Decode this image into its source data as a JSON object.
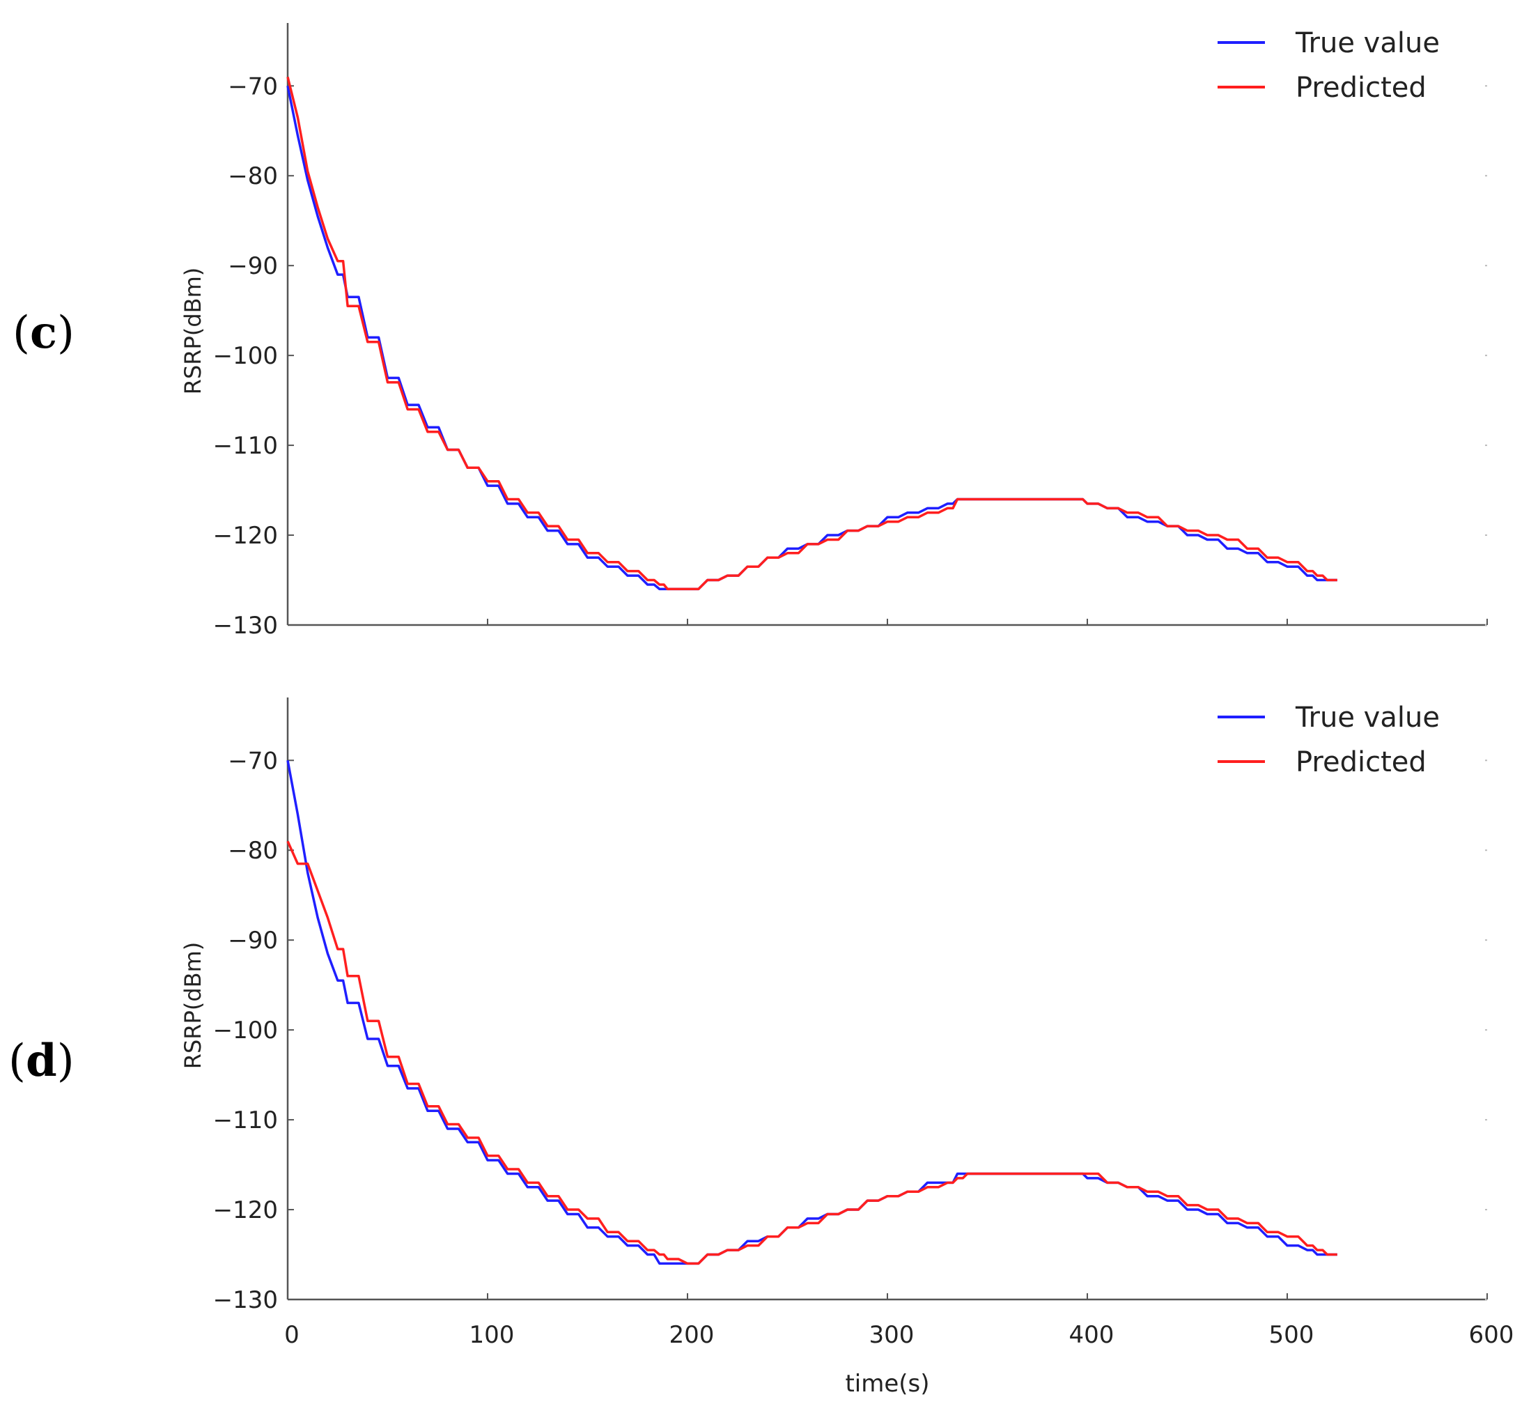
{
  "figure": {
    "panels": [
      {
        "label_open": "(",
        "label_letter": "c",
        "label_close": ")"
      },
      {
        "label_open": "(",
        "label_letter": "d",
        "label_close": ")"
      }
    ]
  },
  "chart_data": [
    {
      "type": "line",
      "panel": "c",
      "title": "",
      "xlabel": "",
      "ylabel": "RSRP(dBm)",
      "xlim": [
        0,
        600
      ],
      "ylim": [
        -130,
        -63
      ],
      "yticks": [
        -70,
        -80,
        -90,
        -100,
        -110,
        -120,
        -130
      ],
      "ytick_labels": [
        "−70",
        "−80",
        "−90",
        "−100",
        "−110",
        "−120",
        "−130"
      ],
      "xticks": [
        0,
        100,
        200,
        300,
        400,
        500,
        600
      ],
      "xtick_labels": [],
      "legend_position": "top-right",
      "series": [
        {
          "name": "True value",
          "color": "#1f1fff",
          "x": [
            0,
            5,
            10,
            15,
            20,
            25,
            30,
            40,
            50,
            60,
            70,
            80,
            90,
            100,
            110,
            120,
            130,
            140,
            150,
            160,
            170,
            180,
            186,
            190,
            200,
            210,
            220,
            230,
            240,
            250,
            260,
            270,
            280,
            290,
            300,
            310,
            320,
            330,
            335,
            340,
            350,
            360,
            370,
            380,
            390,
            395,
            400,
            410,
            420,
            430,
            440,
            450,
            460,
            470,
            480,
            490,
            500,
            510,
            515,
            520,
            525
          ],
          "y": [
            -70,
            -75.5,
            -80.5,
            -84.5,
            -88,
            -91,
            -93.5,
            -98,
            -102.5,
            -105.5,
            -108,
            -110.5,
            -112.5,
            -114.5,
            -116.5,
            -118,
            -119.5,
            -121,
            -122.5,
            -123.5,
            -124.5,
            -125.5,
            -126,
            -126,
            -126,
            -125,
            -124.5,
            -123.5,
            -122.5,
            -121.5,
            -121,
            -120,
            -119.5,
            -119,
            -118,
            -117.5,
            -117,
            -116.5,
            -116,
            -116,
            -116,
            -116,
            -116,
            -116,
            -116,
            -116,
            -116.5,
            -117,
            -118,
            -118.5,
            -119,
            -120,
            -120.5,
            -121.5,
            -122,
            -123,
            -123.5,
            -124.5,
            -125,
            -125,
            -125
          ]
        },
        {
          "name": "Predicted",
          "color": "#ff1f1f",
          "x": [
            0,
            5,
            10,
            15,
            20,
            25,
            30,
            40,
            50,
            60,
            70,
            80,
            90,
            100,
            110,
            120,
            130,
            140,
            150,
            160,
            170,
            180,
            186,
            190,
            200,
            210,
            220,
            230,
            240,
            250,
            260,
            270,
            280,
            290,
            300,
            310,
            320,
            330,
            335,
            340,
            350,
            360,
            370,
            380,
            390,
            395,
            400,
            410,
            420,
            430,
            440,
            450,
            460,
            470,
            480,
            490,
            500,
            510,
            515,
            520,
            525
          ],
          "y": [
            -69,
            -73.5,
            -79.5,
            -83.5,
            -87,
            -89.5,
            -94.5,
            -98.5,
            -103,
            -106,
            -108.5,
            -110.5,
            -112.5,
            -114,
            -116,
            -117.5,
            -119,
            -120.5,
            -122,
            -123,
            -124,
            -125,
            -125.5,
            -126,
            -126,
            -125,
            -124.5,
            -123.5,
            -122.5,
            -122,
            -121,
            -120.5,
            -119.5,
            -119,
            -118.5,
            -118,
            -117.5,
            -117,
            -116,
            -116,
            -116,
            -116,
            -116,
            -116,
            -116,
            -116,
            -116.5,
            -117,
            -117.5,
            -118,
            -119,
            -119.5,
            -120,
            -120.5,
            -121.5,
            -122.5,
            -123,
            -124,
            -124.5,
            -125,
            -125
          ]
        }
      ]
    },
    {
      "type": "line",
      "panel": "d",
      "title": "",
      "xlabel": "time(s)",
      "ylabel": "RSRP(dBm)",
      "xlim": [
        0,
        600
      ],
      "ylim": [
        -130,
        -63
      ],
      "yticks": [
        -70,
        -80,
        -90,
        -100,
        -110,
        -120,
        -130
      ],
      "ytick_labels": [
        "−70",
        "−80",
        "−90",
        "−100",
        "−110",
        "−120",
        "−130"
      ],
      "xticks": [
        0,
        100,
        200,
        300,
        400,
        500,
        600
      ],
      "xtick_labels": [
        "0",
        "100",
        "200",
        "300",
        "400",
        "500",
        "600"
      ],
      "legend_position": "top-right",
      "series": [
        {
          "name": "True value",
          "color": "#1f1fff",
          "x": [
            0,
            5,
            10,
            15,
            20,
            25,
            30,
            40,
            50,
            60,
            70,
            80,
            90,
            100,
            110,
            120,
            130,
            140,
            150,
            160,
            170,
            180,
            186,
            190,
            200,
            210,
            220,
            230,
            240,
            250,
            260,
            270,
            280,
            290,
            300,
            310,
            320,
            330,
            335,
            340,
            350,
            360,
            370,
            380,
            390,
            395,
            400,
            410,
            420,
            430,
            440,
            450,
            460,
            470,
            480,
            490,
            500,
            510,
            515,
            520,
            525
          ],
          "y": [
            -70,
            -76,
            -82.5,
            -87.5,
            -91.5,
            -94.5,
            -97,
            -101,
            -104,
            -106.5,
            -109,
            -111,
            -112.5,
            -114.5,
            -116,
            -117.5,
            -119,
            -120.5,
            -122,
            -123,
            -124,
            -125,
            -126,
            -126,
            -126,
            -125,
            -124.5,
            -123.5,
            -123,
            -122,
            -121,
            -120.5,
            -120,
            -119,
            -118.5,
            -118,
            -117,
            -117,
            -116,
            -116,
            -116,
            -116,
            -116,
            -116,
            -116,
            -116,
            -116.5,
            -117,
            -117.5,
            -118.5,
            -119,
            -120,
            -120.5,
            -121.5,
            -122,
            -123,
            -124,
            -124.5,
            -125,
            -125,
            -125
          ]
        },
        {
          "name": "Predicted",
          "color": "#ff1f1f",
          "x": [
            0,
            5,
            10,
            15,
            20,
            25,
            30,
            40,
            50,
            60,
            70,
            80,
            90,
            100,
            110,
            120,
            130,
            140,
            150,
            160,
            170,
            180,
            186,
            190,
            200,
            210,
            220,
            230,
            240,
            250,
            260,
            270,
            280,
            290,
            300,
            310,
            320,
            330,
            335,
            340,
            350,
            360,
            370,
            380,
            390,
            395,
            400,
            410,
            420,
            430,
            440,
            450,
            460,
            470,
            480,
            490,
            500,
            510,
            515,
            520,
            525
          ],
          "y": [
            -79,
            -81.5,
            -81.5,
            -84.5,
            -87.5,
            -91,
            -94,
            -99,
            -103,
            -106,
            -108.5,
            -110.5,
            -112,
            -114,
            -115.5,
            -117,
            -118.5,
            -120,
            -121,
            -122.5,
            -123.5,
            -124.5,
            -125,
            -125.5,
            -126,
            -125,
            -124.5,
            -124,
            -123,
            -122,
            -121.5,
            -120.5,
            -120,
            -119,
            -118.5,
            -118,
            -117.5,
            -117,
            -116.5,
            -116,
            -116,
            -116,
            -116,
            -116,
            -116,
            -116,
            -116,
            -117,
            -117.5,
            -118,
            -118.5,
            -119.5,
            -120,
            -121,
            -121.5,
            -122.5,
            -123,
            -124,
            -124.5,
            -125,
            -125
          ]
        }
      ]
    }
  ]
}
